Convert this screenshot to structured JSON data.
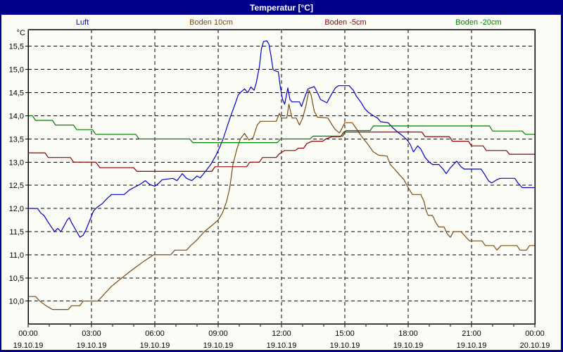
{
  "window": {
    "title": "Temperatur [°C]"
  },
  "colors": {
    "titlebar_bg": "#00008B",
    "titlebar_text": "#FFFFFF",
    "frame": "#00008B",
    "surface": "#FCFCF7",
    "grid": "#000000",
    "axis": "#000000",
    "text": "#000000"
  },
  "legend": {
    "items": [
      {
        "label": "Luft",
        "color": "#0000CC"
      },
      {
        "label": "Boden 10cm",
        "color": "#7B4A12"
      },
      {
        "label": "Boden -5cm",
        "color": "#8B0000"
      },
      {
        "label": "Boden -20cm",
        "color": "#007F00"
      }
    ]
  },
  "chart_data": {
    "type": "line",
    "title": "Temperatur [°C]",
    "ylabel": "°C",
    "grid": "dashed",
    "legend_position": "top",
    "ylim": [
      9.51,
      15.86
    ],
    "xlim_hours": [
      0,
      24
    ],
    "x_minor_tick_every_hours": 1,
    "y_ticks": [
      {
        "value": 15.5,
        "label": "15,5"
      },
      {
        "value": 15.0,
        "label": "15,0"
      },
      {
        "value": 14.5,
        "label": "14,5"
      },
      {
        "value": 14.0,
        "label": "14,0"
      },
      {
        "value": 13.5,
        "label": "13,5"
      },
      {
        "value": 13.0,
        "label": "13,0"
      },
      {
        "value": 12.5,
        "label": "12,5"
      },
      {
        "value": 12.0,
        "label": "12,0"
      },
      {
        "value": 11.5,
        "label": "11,5"
      },
      {
        "value": 11.0,
        "label": "11,0"
      },
      {
        "value": 10.5,
        "label": "10,5"
      },
      {
        "value": 10.0,
        "label": "10,0"
      }
    ],
    "x_ticks": [
      {
        "hour": 0,
        "time": "00:00",
        "date": "19.10.19"
      },
      {
        "hour": 3,
        "time": "03:00",
        "date": "19.10.19"
      },
      {
        "hour": 6,
        "time": "06:00",
        "date": "19.10.19"
      },
      {
        "hour": 9,
        "time": "09:00",
        "date": "19.10.19"
      },
      {
        "hour": 12,
        "time": "12:00",
        "date": "19.10.19"
      },
      {
        "hour": 15,
        "time": "15:00",
        "date": "19.10.19"
      },
      {
        "hour": 18,
        "time": "18:00",
        "date": "19.10.19"
      },
      {
        "hour": 21,
        "time": "21:00",
        "date": "19.10.19"
      },
      {
        "hour": 24,
        "time": "00:00",
        "date": "20.10.19"
      }
    ],
    "series": [
      {
        "name": "Luft",
        "color": "#0000CC",
        "points": [
          [
            0,
            12.0
          ],
          [
            0.45,
            12.0
          ],
          [
            0.6,
            11.9
          ],
          [
            0.75,
            11.85
          ],
          [
            0.95,
            11.7
          ],
          [
            1.1,
            11.6
          ],
          [
            1.25,
            11.5
          ],
          [
            1.4,
            11.57
          ],
          [
            1.55,
            11.5
          ],
          [
            1.7,
            11.62
          ],
          [
            1.85,
            11.75
          ],
          [
            1.95,
            11.8
          ],
          [
            2.05,
            11.7
          ],
          [
            2.15,
            11.62
          ],
          [
            2.3,
            11.5
          ],
          [
            2.45,
            11.38
          ],
          [
            2.6,
            11.42
          ],
          [
            2.75,
            11.55
          ],
          [
            2.9,
            11.72
          ],
          [
            3.1,
            11.95
          ],
          [
            3.25,
            12.02
          ],
          [
            3.5,
            12.1
          ],
          [
            3.75,
            12.22
          ],
          [
            3.95,
            12.3
          ],
          [
            4.55,
            12.3
          ],
          [
            4.8,
            12.4
          ],
          [
            5.0,
            12.45
          ],
          [
            5.3,
            12.52
          ],
          [
            5.55,
            12.6
          ],
          [
            5.75,
            12.52
          ],
          [
            6.0,
            12.48
          ],
          [
            6.2,
            12.55
          ],
          [
            6.35,
            12.62
          ],
          [
            6.85,
            12.65
          ],
          [
            7.05,
            12.6
          ],
          [
            7.3,
            12.75
          ],
          [
            7.5,
            12.65
          ],
          [
            7.75,
            12.6
          ],
          [
            8.0,
            12.7
          ],
          [
            8.15,
            12.66
          ],
          [
            8.4,
            12.8
          ],
          [
            8.65,
            12.95
          ],
          [
            8.9,
            13.15
          ],
          [
            9.1,
            13.35
          ],
          [
            9.25,
            13.52
          ],
          [
            9.45,
            13.8
          ],
          [
            9.6,
            14.0
          ],
          [
            9.8,
            14.25
          ],
          [
            9.95,
            14.45
          ],
          [
            10.1,
            14.52
          ],
          [
            10.25,
            14.58
          ],
          [
            10.4,
            14.5
          ],
          [
            10.55,
            14.62
          ],
          [
            10.7,
            14.55
          ],
          [
            10.8,
            14.7
          ],
          [
            10.95,
            15.05
          ],
          [
            11.05,
            15.45
          ],
          [
            11.15,
            15.6
          ],
          [
            11.3,
            15.62
          ],
          [
            11.4,
            15.55
          ],
          [
            11.5,
            15.3
          ],
          [
            11.6,
            15.0
          ],
          [
            11.7,
            14.97
          ],
          [
            11.85,
            14.95
          ],
          [
            11.95,
            14.6
          ],
          [
            12.05,
            14.35
          ],
          [
            12.15,
            14.25
          ],
          [
            12.3,
            14.6
          ],
          [
            12.4,
            14.35
          ],
          [
            12.5,
            14.3
          ],
          [
            12.85,
            14.3
          ],
          [
            12.95,
            14.2
          ],
          [
            13.1,
            14.4
          ],
          [
            13.25,
            14.58
          ],
          [
            13.55,
            14.63
          ],
          [
            13.7,
            14.5
          ],
          [
            13.85,
            14.35
          ],
          [
            14.15,
            14.28
          ],
          [
            14.35,
            14.45
          ],
          [
            14.55,
            14.6
          ],
          [
            14.7,
            14.65
          ],
          [
            15.2,
            14.65
          ],
          [
            15.4,
            14.55
          ],
          [
            15.55,
            14.42
          ],
          [
            15.75,
            14.3
          ],
          [
            15.95,
            14.15
          ],
          [
            16.1,
            14.08
          ],
          [
            16.35,
            14.0
          ],
          [
            16.55,
            13.95
          ],
          [
            16.7,
            13.87
          ],
          [
            17.05,
            13.85
          ],
          [
            17.25,
            13.75
          ],
          [
            17.5,
            13.65
          ],
          [
            17.7,
            13.58
          ],
          [
            17.95,
            13.48
          ],
          [
            18.1,
            13.38
          ],
          [
            18.25,
            13.22
          ],
          [
            18.45,
            13.35
          ],
          [
            18.6,
            13.28
          ],
          [
            18.8,
            13.1
          ],
          [
            19.0,
            13.0
          ],
          [
            19.15,
            12.95
          ],
          [
            19.45,
            12.95
          ],
          [
            19.65,
            12.85
          ],
          [
            19.8,
            12.75
          ],
          [
            20.0,
            12.88
          ],
          [
            20.3,
            13.02
          ],
          [
            20.5,
            12.9
          ],
          [
            20.65,
            12.85
          ],
          [
            21.45,
            12.85
          ],
          [
            21.6,
            12.75
          ],
          [
            21.8,
            12.6
          ],
          [
            21.95,
            12.55
          ],
          [
            22.2,
            12.62
          ],
          [
            22.35,
            12.65
          ],
          [
            23.05,
            12.65
          ],
          [
            23.2,
            12.55
          ],
          [
            23.4,
            12.45
          ],
          [
            24,
            12.45
          ]
        ]
      },
      {
        "name": "Boden 10cm",
        "color": "#7B4A12",
        "points": [
          [
            0,
            10.1
          ],
          [
            0.35,
            10.1
          ],
          [
            0.55,
            10.0
          ],
          [
            0.85,
            9.9
          ],
          [
            1.15,
            9.82
          ],
          [
            1.9,
            9.82
          ],
          [
            2.05,
            9.9
          ],
          [
            2.45,
            9.9
          ],
          [
            2.6,
            10.0
          ],
          [
            3.3,
            10.0
          ],
          [
            3.6,
            10.15
          ],
          [
            3.95,
            10.32
          ],
          [
            4.3,
            10.45
          ],
          [
            4.85,
            10.65
          ],
          [
            5.15,
            10.75
          ],
          [
            5.45,
            10.85
          ],
          [
            5.95,
            11.0
          ],
          [
            6.75,
            11.0
          ],
          [
            6.95,
            11.1
          ],
          [
            7.5,
            11.1
          ],
          [
            7.7,
            11.2
          ],
          [
            7.95,
            11.3
          ],
          [
            8.35,
            11.5
          ],
          [
            8.75,
            11.65
          ],
          [
            9.0,
            11.75
          ],
          [
            9.2,
            11.9
          ],
          [
            9.4,
            12.15
          ],
          [
            9.55,
            12.45
          ],
          [
            9.7,
            12.95
          ],
          [
            9.9,
            13.3
          ],
          [
            10.05,
            13.5
          ],
          [
            10.25,
            13.62
          ],
          [
            10.45,
            13.48
          ],
          [
            10.65,
            13.52
          ],
          [
            10.85,
            13.8
          ],
          [
            11.0,
            13.88
          ],
          [
            11.75,
            13.88
          ],
          [
            11.9,
            14.05
          ],
          [
            12.0,
            13.95
          ],
          [
            12.25,
            13.95
          ],
          [
            12.35,
            14.25
          ],
          [
            12.5,
            13.95
          ],
          [
            12.7,
            13.95
          ],
          [
            12.85,
            13.8
          ],
          [
            13.0,
            13.95
          ],
          [
            13.15,
            14.2
          ],
          [
            13.3,
            14.55
          ],
          [
            13.4,
            14.45
          ],
          [
            13.55,
            14.1
          ],
          [
            13.7,
            13.97
          ],
          [
            14.2,
            13.95
          ],
          [
            14.4,
            13.8
          ],
          [
            14.55,
            13.7
          ],
          [
            14.75,
            13.63
          ],
          [
            15.0,
            13.85
          ],
          [
            15.35,
            13.85
          ],
          [
            15.55,
            13.72
          ],
          [
            15.8,
            13.55
          ],
          [
            16.1,
            13.38
          ],
          [
            16.35,
            13.22
          ],
          [
            16.6,
            13.15
          ],
          [
            17.0,
            13.13
          ],
          [
            17.15,
            12.95
          ],
          [
            17.35,
            12.85
          ],
          [
            17.6,
            12.72
          ],
          [
            17.8,
            12.62
          ],
          [
            18.0,
            12.45
          ],
          [
            18.2,
            12.3
          ],
          [
            18.6,
            12.3
          ],
          [
            18.75,
            12.15
          ],
          [
            18.85,
            11.95
          ],
          [
            18.95,
            11.85
          ],
          [
            19.15,
            11.85
          ],
          [
            19.3,
            11.7
          ],
          [
            19.45,
            11.6
          ],
          [
            19.7,
            11.6
          ],
          [
            19.85,
            11.45
          ],
          [
            20.0,
            11.38
          ],
          [
            20.15,
            11.5
          ],
          [
            20.5,
            11.5
          ],
          [
            20.7,
            11.4
          ],
          [
            20.9,
            11.3
          ],
          [
            21.5,
            11.3
          ],
          [
            21.65,
            11.2
          ],
          [
            22.05,
            11.2
          ],
          [
            22.2,
            11.1
          ],
          [
            22.4,
            11.2
          ],
          [
            23.15,
            11.2
          ],
          [
            23.3,
            11.1
          ],
          [
            23.6,
            11.1
          ],
          [
            23.75,
            11.2
          ],
          [
            24,
            11.2
          ]
        ]
      },
      {
        "name": "Boden -5cm",
        "color": "#8B0000",
        "points": [
          [
            0,
            13.2
          ],
          [
            0.8,
            13.2
          ],
          [
            0.95,
            13.1
          ],
          [
            2.0,
            13.1
          ],
          [
            2.15,
            13.0
          ],
          [
            3.2,
            13.0
          ],
          [
            3.4,
            12.88
          ],
          [
            5.0,
            12.88
          ],
          [
            5.15,
            12.8
          ],
          [
            8.7,
            12.8
          ],
          [
            8.85,
            12.9
          ],
          [
            10.35,
            12.9
          ],
          [
            10.5,
            13.0
          ],
          [
            10.95,
            13.0
          ],
          [
            11.1,
            13.1
          ],
          [
            11.75,
            13.1
          ],
          [
            11.9,
            13.18
          ],
          [
            12.15,
            13.25
          ],
          [
            12.65,
            13.25
          ],
          [
            12.8,
            13.3
          ],
          [
            13.05,
            13.3
          ],
          [
            13.2,
            13.4
          ],
          [
            13.45,
            13.45
          ],
          [
            13.95,
            13.45
          ],
          [
            14.1,
            13.5
          ],
          [
            14.4,
            13.55
          ],
          [
            14.8,
            13.55
          ],
          [
            14.95,
            13.65
          ],
          [
            18.65,
            13.65
          ],
          [
            18.8,
            13.55
          ],
          [
            19.95,
            13.55
          ],
          [
            20.1,
            13.45
          ],
          [
            20.85,
            13.45
          ],
          [
            21.0,
            13.35
          ],
          [
            21.55,
            13.35
          ],
          [
            21.7,
            13.25
          ],
          [
            22.65,
            13.25
          ],
          [
            22.8,
            13.17
          ],
          [
            24,
            13.17
          ]
        ]
      },
      {
        "name": "Boden -20cm",
        "color": "#007F00",
        "points": [
          [
            0,
            14.0
          ],
          [
            0.2,
            14.0
          ],
          [
            0.35,
            13.9
          ],
          [
            1.15,
            13.9
          ],
          [
            1.3,
            13.8
          ],
          [
            2.15,
            13.8
          ],
          [
            2.3,
            13.7
          ],
          [
            3.05,
            13.7
          ],
          [
            3.2,
            13.6
          ],
          [
            5.1,
            13.6
          ],
          [
            5.25,
            13.5
          ],
          [
            7.65,
            13.5
          ],
          [
            7.8,
            13.42
          ],
          [
            11.8,
            13.42
          ],
          [
            11.95,
            13.5
          ],
          [
            13.35,
            13.5
          ],
          [
            13.5,
            13.56
          ],
          [
            14.9,
            13.56
          ],
          [
            15.05,
            13.68
          ],
          [
            16.2,
            13.68
          ],
          [
            16.35,
            13.78
          ],
          [
            21.85,
            13.78
          ],
          [
            22.0,
            13.67
          ],
          [
            23.4,
            13.67
          ],
          [
            23.55,
            13.6
          ],
          [
            24,
            13.6
          ]
        ]
      }
    ]
  }
}
